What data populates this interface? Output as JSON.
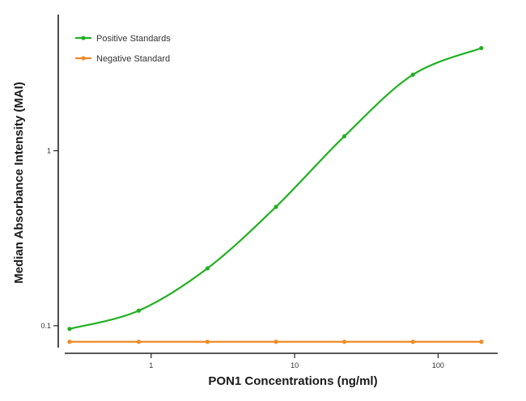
{
  "chart_data": {
    "type": "line",
    "title": "",
    "xlabel": "PON1 Concentrations (ng/ml)",
    "ylabel": "Median Absorbance Intensity (MAI)",
    "xscale": "log",
    "yscale": "log",
    "xlim": [
      0.25,
      260
    ],
    "ylim": [
      0.075,
      6.0
    ],
    "x_ticks": [
      {
        "value": 1,
        "label": "1"
      },
      {
        "value": 10,
        "label": "10"
      },
      {
        "value": 100,
        "label": "100"
      }
    ],
    "y_ticks": [
      {
        "value": 0.1,
        "label": "0.1"
      },
      {
        "value": 1,
        "label": "1"
      }
    ],
    "grid": false,
    "legend_position": "top-left",
    "series": [
      {
        "name": "Positive Standards",
        "color": "#22b022",
        "x": [
          0.27,
          0.82,
          2.47,
          7.41,
          22.2,
          66.7,
          200
        ],
        "y": [
          0.096,
          0.122,
          0.213,
          0.478,
          1.21,
          2.72,
          3.86
        ],
        "curve": "fitted"
      },
      {
        "name": "Negative Standard",
        "color": "#f08a28",
        "x": [
          0.27,
          0.82,
          2.47,
          7.41,
          22.2,
          66.7,
          200
        ],
        "y": [
          0.081,
          0.081,
          0.081,
          0.081,
          0.081,
          0.081,
          0.081
        ],
        "curve": "straight"
      }
    ]
  }
}
